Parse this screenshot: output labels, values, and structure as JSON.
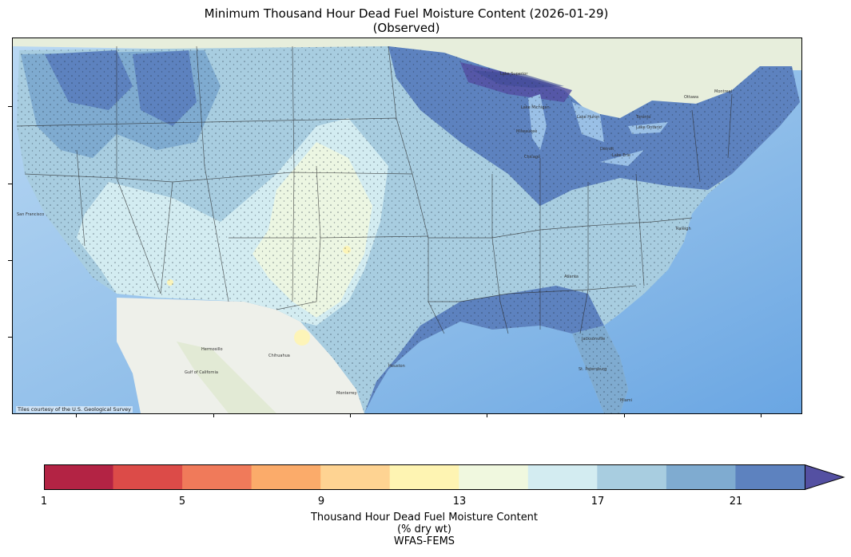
{
  "title_line1": "Minimum Thousand Hour Dead Fuel Moisture Content (2026-01-29)",
  "title_line2": "(Observed)",
  "map": {
    "attribution": "Tiles courtesy of the U.S. Geological Survey",
    "place_labels": [
      "San Francisco",
      "Hermosillo",
      "Chihuahua",
      "Monterrey",
      "Gulf of California",
      "Milwaukee",
      "Chicago",
      "Detroit",
      "Toronto",
      "Ottawa",
      "Montreal",
      "Lake Superior",
      "Lake Michigan",
      "Lake Huron",
      "Lake Ontario",
      "Lake Erie",
      "Houston",
      "Jacksonville",
      "Miami",
      "St. Petersburg",
      "Atlanta",
      "Raleigh"
    ],
    "legend_meaning": "Thousand hour dead fuel moisture content, % dry wt"
  },
  "colorbar": {
    "label_line1": "Thousand Hour Dead Fuel Moisture Content",
    "label_line2": "(% dry wt)",
    "label_line3": "WFAS-FEMS",
    "bins": [
      {
        "min": 1,
        "max": 3,
        "color": "#b32344"
      },
      {
        "min": 3,
        "max": 5,
        "color": "#dc4b48"
      },
      {
        "min": 5,
        "max": 7,
        "color": "#f07a5a"
      },
      {
        "min": 7,
        "max": 9,
        "color": "#fbab6a"
      },
      {
        "min": 9,
        "max": 11,
        "color": "#fed392"
      },
      {
        "min": 11,
        "max": 13,
        "color": "#fef4b2"
      },
      {
        "min": 13,
        "max": 15,
        "color": "#f0f8df"
      },
      {
        "min": 15,
        "max": 17,
        "color": "#d3ecf1"
      },
      {
        "min": 17,
        "max": 19,
        "color": "#a8cde0"
      },
      {
        "min": 19,
        "max": 21,
        "color": "#7fabd0"
      },
      {
        "min": 21,
        "max": 23,
        "color": "#5d82bf"
      }
    ],
    "extend_color": "#5450a2",
    "tick_labels": [
      "1",
      "5",
      "9",
      "13",
      "17",
      "21"
    ]
  }
}
